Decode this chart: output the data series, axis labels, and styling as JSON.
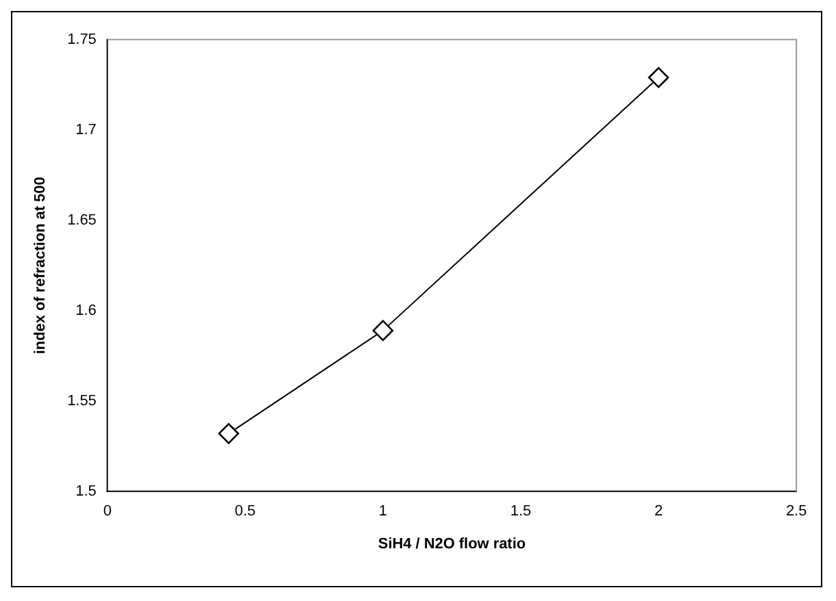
{
  "chart_data": {
    "type": "line",
    "xlabel": "SiH4 / N2O flow ratio",
    "ylabel": "index of refraction at 500",
    "x": [
      0.44,
      1,
      2
    ],
    "series": [
      {
        "color": "#000000",
        "values": [
          1.532,
          1.589,
          1.729
        ]
      }
    ],
    "xlim": [
      0,
      2.5
    ],
    "xticks": [
      0,
      0.5,
      1,
      1.5,
      2,
      2.5
    ],
    "ylim": [
      1.5,
      1.75
    ],
    "yticks": [
      1.5,
      1.55,
      1.6,
      1.65,
      1.7,
      1.75
    ],
    "grid": false,
    "legend": false,
    "marker": "diamond",
    "line_style": "solid"
  }
}
